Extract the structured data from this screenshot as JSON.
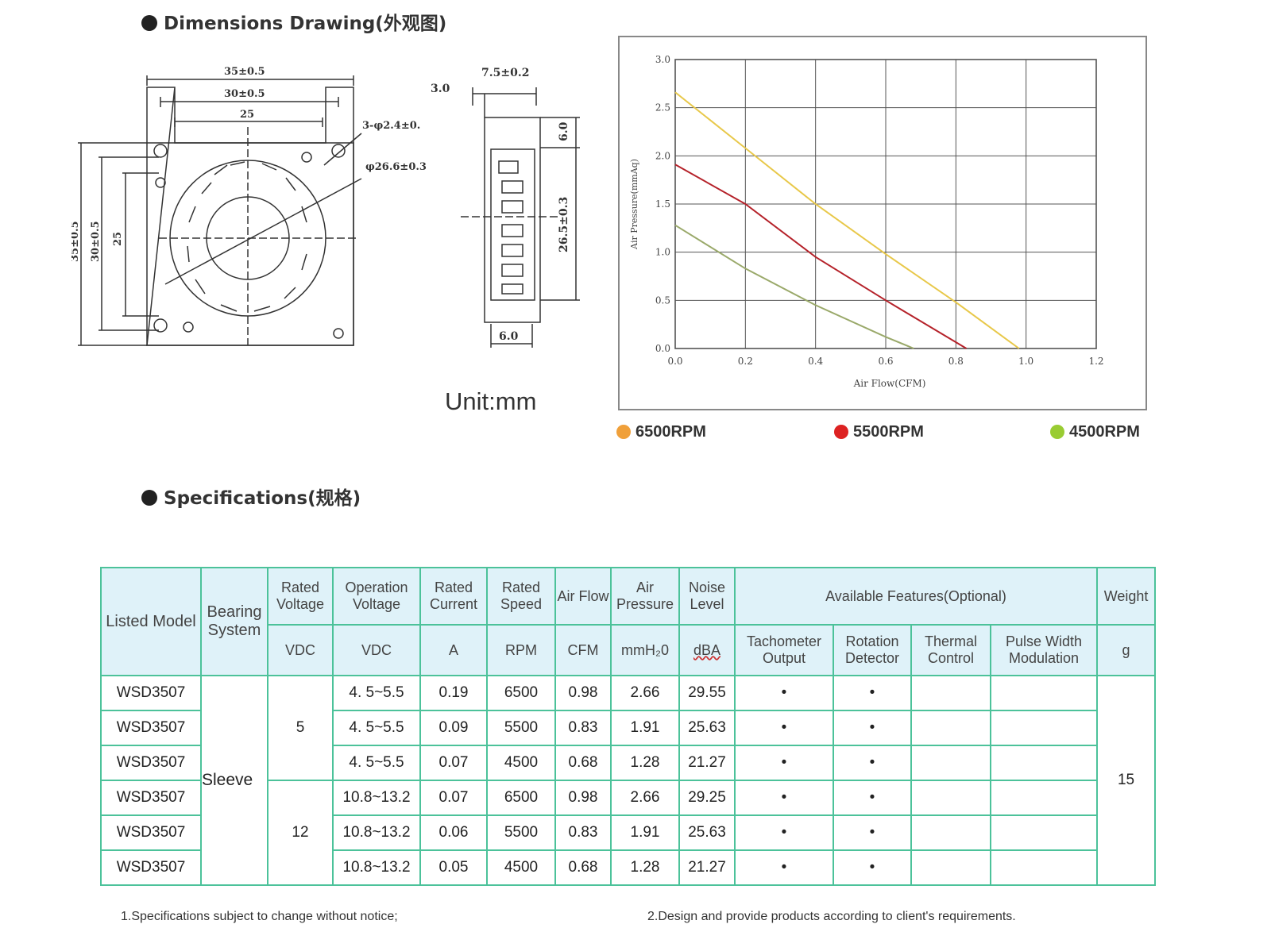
{
  "sections": {
    "dimensions_title": "Dimensions Drawing(外观图)",
    "specifications_title": "Specifications(规格)"
  },
  "drawing": {
    "front": {
      "dim_35": "35±0.5",
      "dim_30": "30±0.5",
      "dim_25": "25",
      "holes": "3-φ2.4±0.",
      "diameter": "φ26.6±0.3"
    },
    "side": {
      "dim_75": "7.5±0.2",
      "dim_30": "3.0",
      "dim_60_top": "6.0",
      "dim_265": "26.5±0.3",
      "dim_60_bottom": "6.0"
    },
    "unit": "Unit:mm"
  },
  "chart_data": {
    "type": "line",
    "xlabel": "Air Flow(CFM)",
    "ylabel": "Air Pressure(mmAq)",
    "xlim": [
      0,
      1.2
    ],
    "ylim": [
      0,
      3.0
    ],
    "x_ticks": [
      "0.0",
      "0.2",
      "0.4",
      "0.6",
      "0.8",
      "1.0",
      "1.2"
    ],
    "y_ticks": [
      "0.0",
      "0.5",
      "1.0",
      "1.5",
      "2.0",
      "2.5",
      "3.0"
    ],
    "grid": true,
    "legend_placement": "bottom",
    "series": [
      {
        "name": "6500RPM",
        "color": "#e8c84a",
        "dot_color": "#f0a03a",
        "x": [
          0.0,
          0.2,
          0.4,
          0.6,
          0.8,
          0.98
        ],
        "y": [
          2.66,
          2.08,
          1.5,
          0.98,
          0.48,
          0.0
        ]
      },
      {
        "name": "5500RPM",
        "color": "#b5222a",
        "dot_color": "#dd2222",
        "x": [
          0.0,
          0.2,
          0.4,
          0.6,
          0.83
        ],
        "y": [
          1.91,
          1.5,
          0.95,
          0.5,
          0.0
        ]
      },
      {
        "name": "4500RPM",
        "color": "#9aa96a",
        "dot_color": "#99cc33",
        "x": [
          0.0,
          0.2,
          0.4,
          0.6,
          0.68
        ],
        "y": [
          1.28,
          0.83,
          0.45,
          0.12,
          0.0
        ]
      }
    ]
  },
  "table": {
    "headers": {
      "listed_model": "Listed Model",
      "bearing_system": "Bearing System",
      "rated_voltage": "Rated Voltage",
      "operation_voltage": "Operation Voltage",
      "rated_current": "Rated Current",
      "rated_speed": "Rated Speed",
      "air_flow": "Air Flow",
      "air_pressure": "Air Pressure",
      "noise_level": "Noise Level",
      "available_features": "Available Features(Optional)",
      "weight": "Weight"
    },
    "units": {
      "rated_voltage": "VDC",
      "operation_voltage": "VDC",
      "rated_current": "A",
      "rated_speed": "RPM",
      "air_flow": "CFM",
      "air_pressure": "mmH₂0",
      "noise_level": "dBA",
      "weight": "g"
    },
    "features": {
      "tachometer": "Tachometer Output",
      "rotation": "Rotation Detector",
      "thermal": "Thermal Control",
      "pwm": "Pulse Width Modulation"
    },
    "bearing": "Sleeve",
    "voltage_5": "5",
    "voltage_12": "12",
    "weight_value": "15",
    "mark": "•",
    "rows": [
      {
        "model": "WSD3507",
        "op_voltage": "4. 5~5.5",
        "current": "0.19",
        "speed": "6500",
        "flow": "0.98",
        "pressure": "2.66",
        "noise": "29.55"
      },
      {
        "model": "WSD3507",
        "op_voltage": "4. 5~5.5",
        "current": "0.09",
        "speed": "5500",
        "flow": "0.83",
        "pressure": "1.91",
        "noise": "25.63"
      },
      {
        "model": "WSD3507",
        "op_voltage": "4. 5~5.5",
        "current": "0.07",
        "speed": "4500",
        "flow": "0.68",
        "pressure": "1.28",
        "noise": "21.27"
      },
      {
        "model": "WSD3507",
        "op_voltage": "10.8~13.2",
        "current": "0.07",
        "speed": "6500",
        "flow": "0.98",
        "pressure": "2.66",
        "noise": "29.25"
      },
      {
        "model": "WSD3507",
        "op_voltage": "10.8~13.2",
        "current": "0.06",
        "speed": "5500",
        "flow": "0.83",
        "pressure": "1.91",
        "noise": "25.63"
      },
      {
        "model": "WSD3507",
        "op_voltage": "10.8~13.2",
        "current": "0.05",
        "speed": "4500",
        "flow": "0.68",
        "pressure": "1.28",
        "noise": "21.27"
      }
    ]
  },
  "notes": {
    "note1": "1.Specifications subject to change without notice;",
    "note2": "2.Design and provide products according to client's requirements."
  }
}
